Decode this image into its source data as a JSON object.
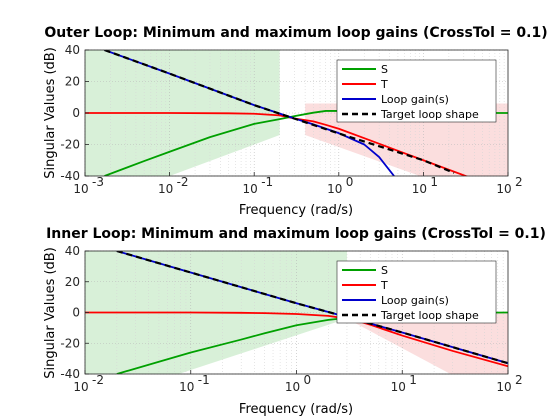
{
  "chart_data": [
    {
      "type": "line",
      "title": "Outer Loop: Minimum and maximum loop gains (CrossTol = 0.1)",
      "xlabel": "Frequency (rad/s)",
      "ylabel": "Singular Values (dB)",
      "xscale": "log",
      "xlim": [
        0.001,
        100
      ],
      "ylim": [
        -40,
        40
      ],
      "xticks": [
        0.001,
        0.01,
        0.1,
        1,
        10,
        100
      ],
      "xtick_labels": [
        [
          "10",
          "-3"
        ],
        [
          "10",
          "-2"
        ],
        [
          "10",
          "-1"
        ],
        [
          "10",
          "0"
        ],
        [
          "10",
          "1"
        ],
        [
          "10",
          "2"
        ]
      ],
      "yticks": [
        -40,
        -20,
        0,
        20,
        40
      ],
      "ytick_labels": [
        "-40",
        "-20",
        "0",
        "20",
        "40"
      ],
      "grid": "on (major and minor, dotted)",
      "legend_location": "top-right",
      "shaded_regions": [
        {
          "color": "#d8f0d8",
          "upper": [
            [
              0.001,
              40
            ],
            [
              0.2,
              40
            ]
          ],
          "lower": [
            [
              0.001,
              -60
            ],
            [
              0.2,
              -14
            ]
          ]
        },
        {
          "color": "#fbdede",
          "upper": [
            [
              0.4,
              6
            ],
            [
              100,
              6
            ]
          ],
          "lower": [
            [
              0.4,
              -14
            ],
            [
              100,
              -60
            ]
          ]
        }
      ],
      "series": [
        {
          "name": "S",
          "color": "#00a000",
          "x": [
            0.0017,
            0.005,
            0.01,
            0.03,
            0.1,
            0.2,
            0.3,
            0.5,
            0.7,
            1,
            2,
            5,
            10,
            100
          ],
          "y": [
            -40,
            -30.5,
            -24.6,
            -15.3,
            -6.9,
            -3.9,
            -2,
            0.2,
            1.3,
            1.3,
            0.6,
            0.2,
            0.1,
            0
          ]
        },
        {
          "name": "T",
          "color": "#ff0000",
          "x": [
            0.001,
            0.01,
            0.05,
            0.1,
            0.2,
            0.3,
            0.5,
            0.7,
            1,
            2,
            5,
            10,
            100
          ],
          "y": [
            0,
            0,
            -0.2,
            -0.5,
            -1.5,
            -3.5,
            -5.3,
            -7.5,
            -10,
            -16,
            -24,
            -30,
            -50
          ]
        },
        {
          "name": "Loop gain(s)",
          "color": "#0000cc",
          "x": [
            0.0017,
            0.01,
            0.1,
            0.3,
            0.5,
            1,
            2,
            3,
            4.5
          ],
          "y": [
            40,
            25,
            5,
            -3.5,
            -7.2,
            -12.8,
            -20,
            -28,
            -40
          ]
        },
        {
          "name": "Target loop shape",
          "color": "#000000",
          "x": [
            0.0017,
            0.01,
            0.1,
            1,
            10,
            23
          ],
          "y": [
            40,
            25,
            5,
            -13,
            -30,
            -38
          ]
        }
      ]
    },
    {
      "type": "line",
      "title": "Inner Loop: Minimum and maximum loop gains (CrossTol = 0.1)",
      "xlabel": "Frequency (rad/s)",
      "ylabel": "Singular Values (dB)",
      "xscale": "log",
      "xlim": [
        0.01,
        100
      ],
      "ylim": [
        -40,
        40
      ],
      "xticks": [
        0.01,
        0.1,
        1,
        10,
        100
      ],
      "xtick_labels": [
        [
          "10",
          "-2"
        ],
        [
          "10",
          "-1"
        ],
        [
          "10",
          "0"
        ],
        [
          "10",
          "1"
        ],
        [
          "10",
          "2"
        ]
      ],
      "yticks": [
        -40,
        -20,
        0,
        20,
        40
      ],
      "ytick_labels": [
        "-40",
        "-20",
        "0",
        "20",
        "40"
      ],
      "grid": "on (major and minor, dotted)",
      "legend_location": "top-right",
      "shaded_regions": [
        {
          "color": "#d8f0d8",
          "upper": [
            [
              0.01,
              40
            ],
            [
              3,
              40
            ]
          ],
          "lower": [
            [
              0.01,
              -60
            ],
            [
              3,
              -4
            ]
          ]
        },
        {
          "color": "#fbdede",
          "upper": [
            [
              3,
              0
            ],
            [
              100,
              0
            ]
          ],
          "lower": [
            [
              3,
              -4
            ],
            [
              100,
              -60
            ]
          ]
        }
      ],
      "series": [
        {
          "name": "S",
          "color": "#00a000",
          "x": [
            0.02,
            0.05,
            0.1,
            0.3,
            0.5,
            1,
            2,
            3,
            5,
            10,
            100
          ],
          "y": [
            -40,
            -32,
            -26,
            -17.6,
            -13.5,
            -8.3,
            -4.8,
            -3.5,
            -1.8,
            -0.5,
            0
          ]
        },
        {
          "name": "T",
          "color": "#ff0000",
          "x": [
            0.01,
            0.1,
            0.3,
            0.5,
            1,
            2,
            3,
            4,
            5,
            10,
            30,
            100
          ],
          "y": [
            0,
            0,
            -0.2,
            -0.4,
            -1,
            -2.2,
            -4,
            -6,
            -8,
            -15,
            -25,
            -35
          ]
        },
        {
          "name": "Loop gain(s)",
          "color": "#0000cc",
          "x": [
            0.02,
            0.1,
            1,
            3,
            10,
            100
          ],
          "y": [
            40,
            26,
            6,
            -3,
            -13,
            -33
          ]
        },
        {
          "name": "Target loop shape",
          "color": "#000000",
          "x": [
            0.02,
            0.1,
            1,
            3,
            10,
            100
          ],
          "y": [
            40,
            26,
            6,
            -3,
            -13,
            -33
          ]
        }
      ]
    }
  ]
}
